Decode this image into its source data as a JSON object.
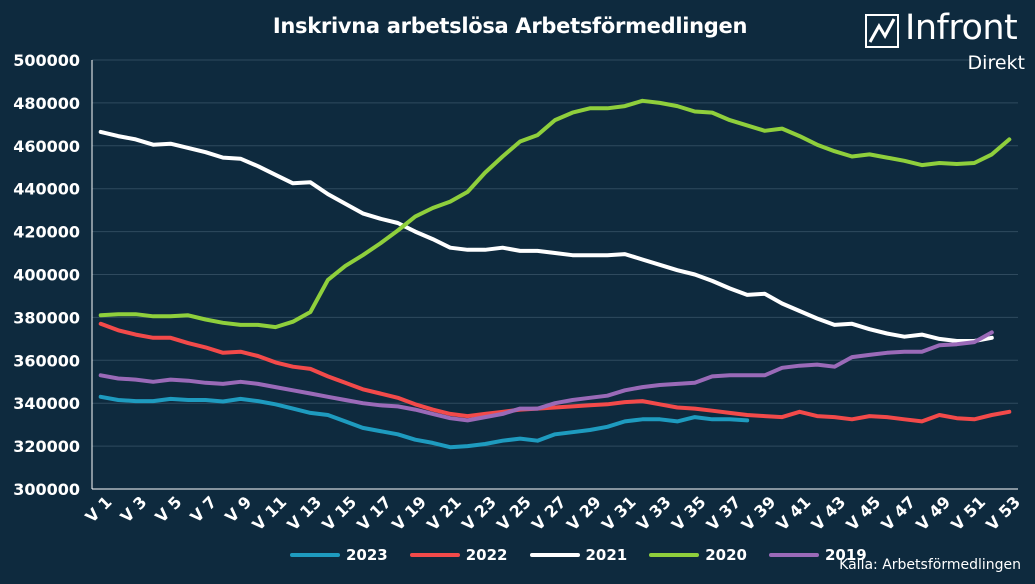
{
  "header": {
    "title": "Inskrivna arbetslösa Arbetsförmedlingen",
    "logo_text": "Infront",
    "logo_subtext": "Direkt"
  },
  "footer": {
    "source": "Källa:  Arbetsförmedlingen"
  },
  "chart_data": {
    "type": "line",
    "title": "Inskrivna arbetslösa Arbetsförmedlingen",
    "xlabel": "",
    "ylabel": "",
    "ylim": [
      300000,
      500000
    ],
    "ytick_values": [
      300000,
      320000,
      340000,
      360000,
      380000,
      400000,
      420000,
      440000,
      460000,
      480000,
      500000
    ],
    "ytick_labels": [
      "300000",
      "320000",
      "340000",
      "360000",
      "380000",
      "400000",
      "420000",
      "440000",
      "460000",
      "480000",
      "500000"
    ],
    "x_count": 53,
    "xtick_labels": [
      "V 1",
      "V 3",
      "V 5",
      "V 7",
      "V 9",
      "V 11",
      "V 13",
      "V 15",
      "V 17",
      "V 19",
      "V 21",
      "V 23",
      "V 25",
      "V 27",
      "V 29",
      "V 31",
      "V 33",
      "V 35",
      "V 37",
      "V 39",
      "V 41",
      "V 43",
      "V 45",
      "V 47",
      "V 49",
      "V 51",
      "V 53"
    ],
    "grid": "horizontal",
    "legend_position": "bottom",
    "series": [
      {
        "name": "2023",
        "color": "#1e9bbf",
        "values": [
          343000,
          341500,
          341000,
          341000,
          342000,
          341500,
          341500,
          340800,
          342000,
          341000,
          339500,
          337500,
          335500,
          334500,
          331500,
          328500,
          327000,
          325500,
          323000,
          321500,
          319500,
          320000,
          321000,
          322500,
          323500,
          322500,
          325500,
          326500,
          327500,
          329000,
          331500,
          332500,
          332500,
          331500,
          333500,
          332500,
          332500,
          332000
        ]
      },
      {
        "name": "2022",
        "color": "#f24a4a",
        "values": [
          377000,
          374000,
          372000,
          370500,
          370500,
          368000,
          366000,
          363500,
          364000,
          362000,
          359000,
          357000,
          356000,
          352500,
          349500,
          346500,
          344500,
          342500,
          339500,
          337000,
          335000,
          334000,
          335000,
          336000,
          337000,
          337500,
          338000,
          338500,
          339000,
          339500,
          340500,
          341000,
          339500,
          338000,
          337500,
          336500,
          335500,
          334500,
          334000,
          333500,
          336000,
          334000,
          333500,
          332500,
          334000,
          333500,
          332500,
          331500,
          334500,
          333000,
          332500,
          334500,
          336000
        ]
      },
      {
        "name": "2021",
        "color": "#ffffff",
        "values": [
          466500,
          464500,
          463000,
          460500,
          461000,
          459000,
          457000,
          454500,
          454000,
          450500,
          446500,
          442500,
          443000,
          437500,
          433000,
          428500,
          426000,
          424000,
          420000,
          416500,
          412500,
          411500,
          411500,
          412500,
          411000,
          411000,
          410000,
          409000,
          409000,
          409000,
          409500,
          407000,
          404500,
          402000,
          400000,
          397000,
          393500,
          390500,
          391000,
          386500,
          383000,
          379500,
          376500,
          377000,
          374500,
          372500,
          371000,
          372000,
          370000,
          369000,
          369000,
          370500
        ]
      },
      {
        "name": "2020",
        "color": "#8fcf3c",
        "values": [
          381000,
          381500,
          381500,
          380500,
          380500,
          381000,
          379000,
          377500,
          376500,
          376500,
          375500,
          378000,
          382500,
          397500,
          404000,
          409000,
          414500,
          420500,
          427000,
          431000,
          434000,
          438500,
          447500,
          455000,
          462000,
          465000,
          472000,
          475500,
          477500,
          477500,
          478500,
          481000,
          480000,
          478500,
          476000,
          475500,
          472000,
          469500,
          467000,
          468000,
          464500,
          460500,
          457500,
          455000,
          456000,
          454500,
          453000,
          451000,
          452000,
          451500,
          452000,
          456000,
          463000
        ]
      },
      {
        "name": "2019",
        "color": "#9a6ab8",
        "values": [
          353000,
          351500,
          351000,
          350000,
          351000,
          350500,
          349500,
          349000,
          350000,
          349000,
          347500,
          346000,
          344500,
          343000,
          341500,
          340000,
          339000,
          338500,
          337000,
          335000,
          333000,
          332000,
          333500,
          335000,
          337500,
          337500,
          340000,
          341500,
          342500,
          343500,
          346000,
          347500,
          348500,
          349000,
          349500,
          352500,
          353000,
          353000,
          353000,
          356500,
          357500,
          358000,
          357000,
          361500,
          362500,
          363500,
          364000,
          364000,
          367000,
          367500,
          368500,
          373000
        ]
      }
    ]
  }
}
